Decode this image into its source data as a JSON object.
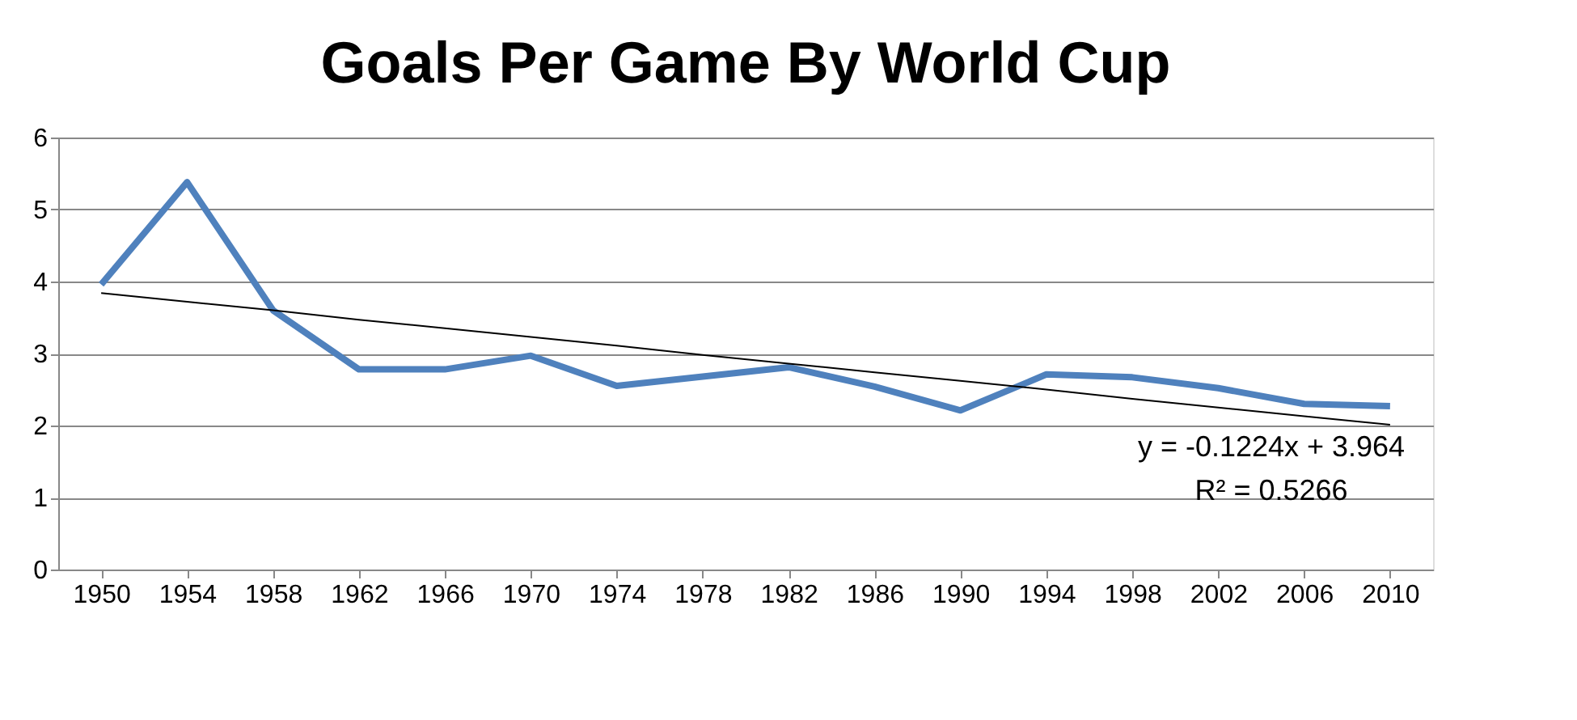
{
  "chart_data": {
    "type": "line",
    "title": "Goals Per Game By World Cup",
    "categories": [
      "1950",
      "1954",
      "1958",
      "1962",
      "1966",
      "1970",
      "1974",
      "1978",
      "1982",
      "1986",
      "1990",
      "1994",
      "1998",
      "2002",
      "2006",
      "2010"
    ],
    "series": [
      {
        "color": "#4f81bd",
        "values": [
          3.96,
          5.38,
          3.6,
          2.78,
          2.78,
          2.97,
          2.55,
          2.68,
          2.81,
          2.54,
          2.21,
          2.71,
          2.67,
          2.52,
          2.3,
          2.27
        ]
      },
      {
        "type": "line",
        "color": "#000000",
        "values": [
          3.84,
          3.72,
          3.6,
          3.47,
          3.35,
          3.23,
          3.11,
          2.98,
          2.86,
          2.74,
          2.62,
          2.5,
          2.37,
          2.25,
          2.13,
          2.01
        ]
      }
    ],
    "ylim": [
      0,
      6
    ],
    "yticks": [
      0,
      1,
      2,
      3,
      4,
      5,
      6
    ],
    "grid": "y",
    "marker": "none",
    "line_style": "solid",
    "annotations": [
      "y = -0.1224x + 3.964",
      "R² = 0.5266"
    ]
  }
}
